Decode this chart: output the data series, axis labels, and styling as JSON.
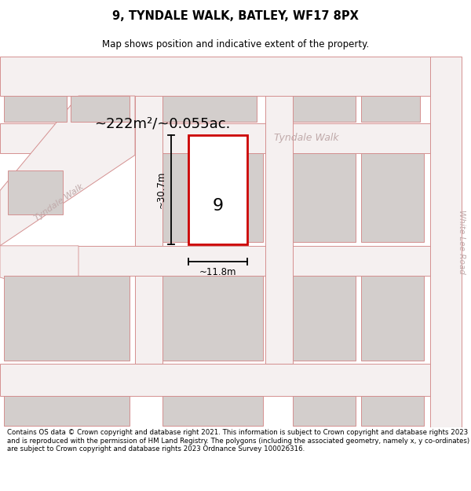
{
  "title": "9, TYNDALE WALK, BATLEY, WF17 8PX",
  "subtitle": "Map shows position and indicative extent of the property.",
  "area_text": "~222m²/~0.055ac.",
  "dim_width": "~11.8m",
  "dim_height": "~30.7m",
  "plot_number": "9",
  "footer": "Contains OS data © Crown copyright and database right 2021. This information is subject to Crown copyright and database rights 2023 and is reproduced with the permission of HM Land Registry. The polygons (including the associated geometry, namely x, y co-ordinates) are subject to Crown copyright and database rights 2023 Ordnance Survey 100026316.",
  "map_bg": "#ede8e8",
  "road_color": "#f8f4f4",
  "building_color": "#d8d4d4",
  "outline_color": "#d4908888",
  "plot_outline_color": "#cc0000",
  "plot_fill": "#ffffff",
  "street_label_color": "#c0aaaa",
  "right_label": "White Lee Road",
  "label_diag": "Tyndale Walk",
  "label_horiz": "Tyndale Walk"
}
